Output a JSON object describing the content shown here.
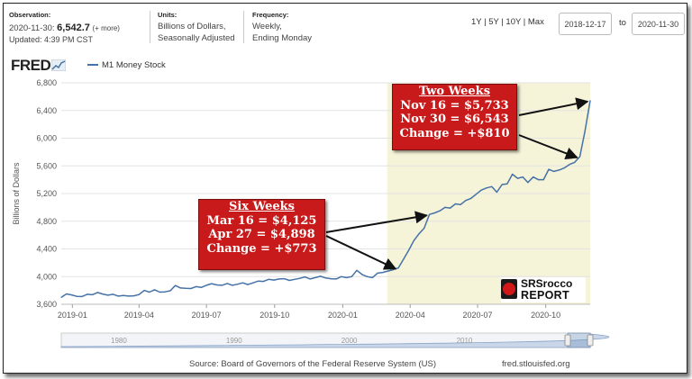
{
  "header": {
    "observation_label": "Observation:",
    "observation_value": "2020-11-30:",
    "observation_number": "6,542.7",
    "observation_more": "(+ more)",
    "updated": "Updated: 4:39 PM CST",
    "units_label": "Units:",
    "units_line1": "Billions of Dollars,",
    "units_line2": "Seasonally Adjusted",
    "frequency_label": "Frequency:",
    "frequency_line1": "Weekly,",
    "frequency_line2": "Ending Monday",
    "range_links": [
      "1Y",
      "5Y",
      "10Y",
      "Max"
    ],
    "start_date": "2018-12-17",
    "to_label": "to",
    "end_date": "2020-11-30"
  },
  "logo": "FRED",
  "footer": {
    "source": "Source: Board of Governors of the Federal Reserve System (US)",
    "site": "fred.stlouisfed.org"
  },
  "watermark": {
    "line1": "SRSrocco",
    "line2": "REPORT",
    "badge": "SRS"
  },
  "annotations": {
    "six_weeks": {
      "title": "Six Weeks",
      "lines": [
        "Mar 16 = $4,125",
        "Apr 27 = $4,898",
        "Change = +$773"
      ]
    },
    "two_weeks": {
      "title": "Two Weeks",
      "lines": [
        "Nov 16 = $5,733",
        "Nov 30 = $6,543",
        "Change = +$810"
      ]
    }
  },
  "colors": {
    "line": "#4572a7",
    "highlight": "#f5f3d8",
    "annotation_bg": "#c81a1a",
    "arrow": "#111111",
    "grid": "#e3e3e3"
  },
  "chart_data": {
    "type": "line",
    "series": [
      {
        "name": "M1 Money Stock",
        "x": [
          "2018-12-17",
          "2018-12-24",
          "2018-12-31",
          "2019-01-07",
          "2019-01-14",
          "2019-01-21",
          "2019-01-28",
          "2019-02-04",
          "2019-02-11",
          "2019-02-18",
          "2019-02-25",
          "2019-03-04",
          "2019-03-11",
          "2019-03-18",
          "2019-03-25",
          "2019-04-01",
          "2019-04-08",
          "2019-04-15",
          "2019-04-22",
          "2019-04-29",
          "2019-05-06",
          "2019-05-13",
          "2019-05-20",
          "2019-05-27",
          "2019-06-03",
          "2019-06-10",
          "2019-06-17",
          "2019-06-24",
          "2019-07-01",
          "2019-07-08",
          "2019-07-15",
          "2019-07-22",
          "2019-07-29",
          "2019-08-05",
          "2019-08-12",
          "2019-08-19",
          "2019-08-26",
          "2019-09-02",
          "2019-09-09",
          "2019-09-16",
          "2019-09-23",
          "2019-09-30",
          "2019-10-07",
          "2019-10-14",
          "2019-10-21",
          "2019-10-28",
          "2019-11-04",
          "2019-11-11",
          "2019-11-18",
          "2019-11-25",
          "2019-12-02",
          "2019-12-09",
          "2019-12-16",
          "2019-12-23",
          "2019-12-30",
          "2020-01-06",
          "2020-01-13",
          "2020-01-20",
          "2020-01-27",
          "2020-02-03",
          "2020-02-10",
          "2020-02-17",
          "2020-02-24",
          "2020-03-02",
          "2020-03-09",
          "2020-03-16",
          "2020-03-23",
          "2020-03-30",
          "2020-04-06",
          "2020-04-13",
          "2020-04-20",
          "2020-04-27",
          "2020-05-04",
          "2020-05-11",
          "2020-05-18",
          "2020-05-25",
          "2020-06-01",
          "2020-06-08",
          "2020-06-15",
          "2020-06-22",
          "2020-06-29",
          "2020-07-06",
          "2020-07-13",
          "2020-07-20",
          "2020-07-27",
          "2020-08-03",
          "2020-08-10",
          "2020-08-17",
          "2020-08-24",
          "2020-08-31",
          "2020-09-07",
          "2020-09-14",
          "2020-09-21",
          "2020-09-28",
          "2020-10-05",
          "2020-10-12",
          "2020-10-19",
          "2020-10-26",
          "2020-11-02",
          "2020-11-09",
          "2020-11-16",
          "2020-11-23",
          "2020-11-30"
        ],
        "y": [
          3700,
          3750,
          3735,
          3715,
          3712,
          3745,
          3738,
          3770,
          3748,
          3732,
          3745,
          3718,
          3728,
          3718,
          3722,
          3740,
          3800,
          3775,
          3810,
          3775,
          3780,
          3795,
          3870,
          3835,
          3830,
          3828,
          3855,
          3843,
          3875,
          3898,
          3880,
          3875,
          3900,
          3875,
          3890,
          3910,
          3885,
          3910,
          3935,
          3930,
          3960,
          3950,
          3965,
          3970,
          3945,
          3960,
          3975,
          3995,
          3965,
          3985,
          4005,
          3980,
          3970,
          3965,
          4000,
          3985,
          4000,
          4090,
          4030,
          4000,
          3985,
          4050,
          4060,
          4080,
          4100,
          4125,
          4250,
          4380,
          4520,
          4620,
          4700,
          4898,
          4920,
          4950,
          5000,
          4990,
          5050,
          5040,
          5100,
          5130,
          5190,
          5250,
          5280,
          5300,
          5220,
          5330,
          5340,
          5480,
          5420,
          5440,
          5360,
          5440,
          5400,
          5400,
          5550,
          5520,
          5540,
          5570,
          5620,
          5650,
          5733,
          6100,
          6543
        ]
      }
    ],
    "xlabel": "",
    "ylabel": "Billions of Dollars",
    "ylim": [
      3600,
      6800
    ],
    "yticks": [
      3600,
      4000,
      4400,
      4800,
      5200,
      5600,
      6000,
      6400,
      6800
    ],
    "ytick_labels": [
      "3,600",
      "4,000",
      "4,400",
      "4,800",
      "5,200",
      "5,600",
      "6,000",
      "6,400",
      "6,800"
    ],
    "xticks": [
      "2019-01-01",
      "2019-04-01",
      "2019-07-01",
      "2019-10-01",
      "2020-01-01",
      "2020-04-01",
      "2020-07-01",
      "2020-10-01"
    ],
    "xtick_labels": [
      "2019-01",
      "2019-04",
      "2019-07",
      "2019-10",
      "2020-01",
      "2020-04",
      "2020-07",
      "2020-10"
    ],
    "highlight_range": [
      "2020-03-01",
      "2020-11-30"
    ],
    "grid": true,
    "legend": "top-left",
    "navigator": {
      "labels": [
        "1980",
        "1990",
        "2000",
        "2010"
      ],
      "start": "1975-01-01",
      "end": "2020-11-30",
      "selection_start": "2018-12-17"
    }
  }
}
